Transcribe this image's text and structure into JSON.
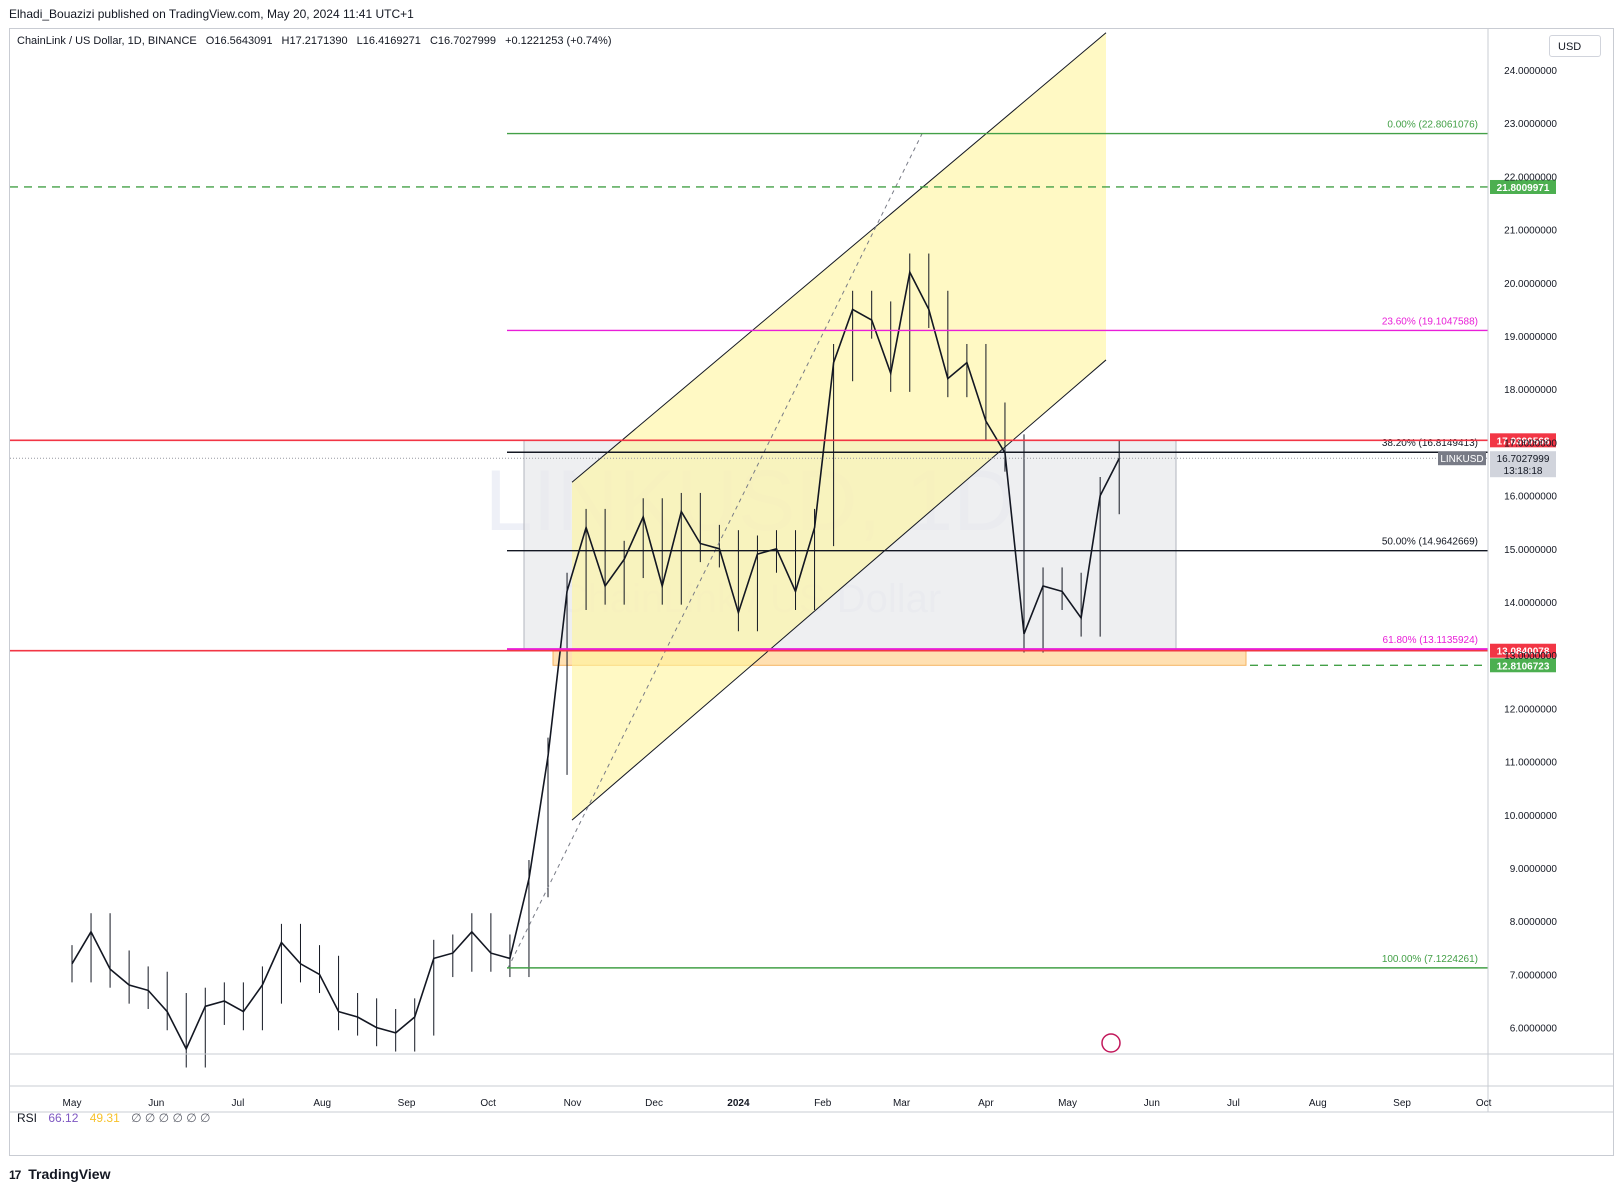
{
  "publisher_line": "Elhadi_Bouazizi published on TradingView.com, May 20, 2024 11:41 UTC+1",
  "legend": {
    "symbol": "ChainLink / US Dollar, 1D, BINANCE",
    "open": "O16.5643091",
    "high": "H17.2171390",
    "low": "L16.4169271",
    "close": "C16.7027999",
    "change": "+0.1221253 (+0.74%)"
  },
  "currency_button": "USD",
  "watermark": {
    "line1": "LINKUSD, 1D",
    "line2": "ChainLink / US Dollar"
  },
  "rsi": {
    "label": "RSI",
    "value1": "66.12",
    "value2": "49.31",
    "symbols": "∅ ∅ ∅ ∅ ∅ ∅"
  },
  "footer_brand": "TradingView",
  "colors": {
    "candle": "#131722",
    "fib_green": "#43a047",
    "fib_magenta": "#e91ed8",
    "red_level": "#f23645",
    "black_level": "#131722",
    "channel_fill": "#fff59d",
    "range_fill": "#e8e9ec",
    "support_fill": "#ffe0b2",
    "price_label_bg": "#787b86",
    "red_label_bg": "#f23645",
    "green_label_bg": "#4caf50"
  },
  "chart_data": {
    "type": "line",
    "title": "ChainLink / US Dollar, 1D, BINANCE",
    "ylim": [
      5.5,
      24.5
    ],
    "y_ticks": [
      "24.0000000",
      "23.0000000",
      "22.0000000",
      "21.0000000",
      "20.0000000",
      "19.0000000",
      "18.0000000",
      "17.0000000",
      "16.0000000",
      "15.0000000",
      "14.0000000",
      "13.0000000",
      "12.0000000",
      "11.0000000",
      "10.0000000",
      "9.0000000",
      "8.0000000",
      "7.0000000",
      "6.0000000"
    ],
    "x_ticks": [
      "May",
      "Jun",
      "Jul",
      "Aug",
      "Sep",
      "Oct",
      "Nov",
      "Dec",
      "2024",
      "Feb",
      "Mar",
      "Apr",
      "May",
      "Jun",
      "Jul",
      "Aug",
      "Sep",
      "Oct"
    ],
    "series": [
      {
        "name": "LINKUSD",
        "x": [
          "2023-05-01",
          "2023-05-08",
          "2023-05-15",
          "2023-05-22",
          "2023-05-29",
          "2023-06-05",
          "2023-06-12",
          "2023-06-19",
          "2023-06-26",
          "2023-07-03",
          "2023-07-10",
          "2023-07-17",
          "2023-07-24",
          "2023-07-31",
          "2023-08-07",
          "2023-08-14",
          "2023-08-21",
          "2023-08-28",
          "2023-09-04",
          "2023-09-11",
          "2023-09-18",
          "2023-09-25",
          "2023-10-02",
          "2023-10-09",
          "2023-10-16",
          "2023-10-23",
          "2023-10-30",
          "2023-11-06",
          "2023-11-13",
          "2023-11-20",
          "2023-11-27",
          "2023-12-04",
          "2023-12-11",
          "2023-12-18",
          "2023-12-25",
          "2024-01-01",
          "2024-01-08",
          "2024-01-15",
          "2024-01-22",
          "2024-01-29",
          "2024-02-05",
          "2024-02-12",
          "2024-02-19",
          "2024-02-26",
          "2024-03-04",
          "2024-03-11",
          "2024-03-18",
          "2024-03-25",
          "2024-04-01",
          "2024-04-08",
          "2024-04-15",
          "2024-04-22",
          "2024-04-29",
          "2024-05-06",
          "2024-05-13",
          "2024-05-20"
        ],
        "values": [
          7.2,
          7.8,
          7.1,
          6.8,
          6.7,
          6.3,
          5.6,
          6.4,
          6.5,
          6.3,
          6.8,
          7.6,
          7.2,
          7.0,
          6.3,
          6.2,
          6.0,
          5.9,
          6.2,
          7.3,
          7.4,
          7.8,
          7.4,
          7.3,
          8.8,
          11.1,
          14.2,
          15.4,
          14.3,
          14.8,
          15.6,
          14.3,
          15.7,
          15.1,
          15.0,
          13.8,
          14.9,
          15.0,
          14.2,
          15.4,
          18.5,
          19.5,
          19.3,
          18.3,
          20.2,
          19.5,
          18.2,
          18.5,
          17.4,
          16.8,
          13.4,
          14.3,
          14.2,
          13.7,
          16.0,
          16.7
        ]
      }
    ],
    "fibonacci": [
      {
        "label": "0.00% (22.8061076)",
        "value": 22.8061076
      },
      {
        "label": "23.60% (19.1047588)",
        "value": 19.1047588
      },
      {
        "label": "38.20% (16.8149413)",
        "value": 16.8149413
      },
      {
        "label": "50.00% (14.9642669)",
        "value": 14.9642669
      },
      {
        "label": "61.80% (13.1135924)",
        "value": 13.1135924
      },
      {
        "label": "100.00% (7.1224261)",
        "value": 7.1224261
      }
    ],
    "levels": [
      {
        "value": 17.0390568,
        "label": "17.0390568",
        "style": "red"
      },
      {
        "value": 13.0840078,
        "label": "13.0840078",
        "style": "red"
      },
      {
        "value": 21.8009971,
        "label": "21.8009971",
        "style": "green-dashed"
      },
      {
        "value": 12.8106723,
        "label": "12.8106723",
        "style": "green-dashed"
      }
    ],
    "last_price": {
      "symbol": "LINKUSD",
      "value": "16.7027999",
      "countdown": "13:18:18"
    }
  }
}
